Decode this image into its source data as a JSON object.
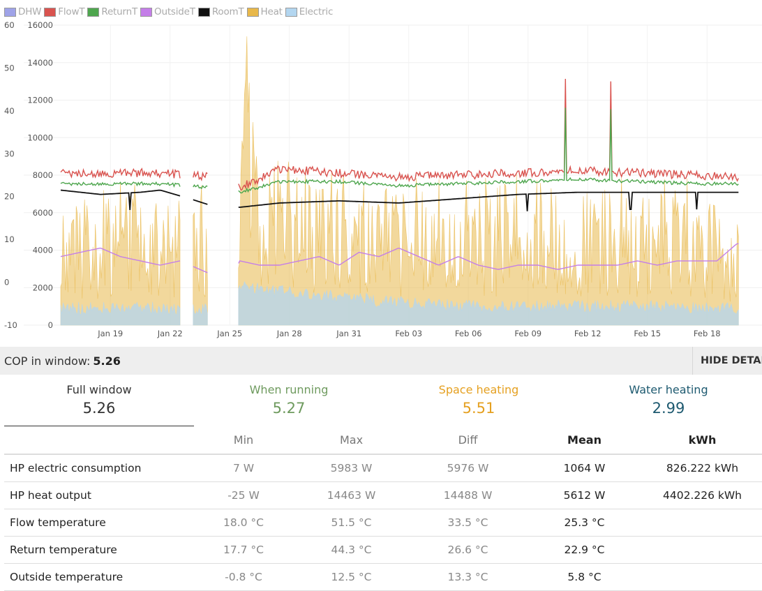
{
  "legend": [
    {
      "label": "DHW",
      "color": "#9fa3e8"
    },
    {
      "label": "FlowT",
      "color": "#d9534f"
    },
    {
      "label": "ReturnT",
      "color": "#4ea64e"
    },
    {
      "label": "OutsideT",
      "color": "#c47ee8"
    },
    {
      "label": "RoomT",
      "color": "#111111"
    },
    {
      "label": "Heat",
      "color": "#e8b84a"
    },
    {
      "label": "Electric",
      "color": "#b3d6f0"
    }
  ],
  "chart_data": {
    "type": "line",
    "title": "",
    "x_ticks": [
      "Jan 19",
      "Jan 22",
      "Jan 25",
      "Jan 28",
      "Jan 31",
      "Feb 03",
      "Feb 06",
      "Feb 09",
      "Feb 12",
      "Feb 15",
      "Feb 18"
    ],
    "y_left": {
      "ticks": [
        "60",
        "50",
        "40",
        "30",
        "20",
        "10",
        "0",
        "-10"
      ],
      "range": [
        -10,
        60
      ],
      "unit": "°C"
    },
    "y_right": {
      "ticks": [
        "16000",
        "14000",
        "12000",
        "10000",
        "8000",
        "6000",
        "4000",
        "2000",
        "0"
      ],
      "range": [
        0,
        16000
      ],
      "unit": "W"
    },
    "gaps": [
      [
        "Jan 23",
        "Jan 23.6"
      ],
      [
        "Jan 24.4",
        "Jan 25.9"
      ]
    ],
    "series": [
      {
        "name": "FlowT",
        "axis": "left",
        "style": "line",
        "color": "#d9534f",
        "x": [
          "Jan 17",
          "Jan 19",
          "Jan 22",
          "Jan 23.5",
          "Jan 24.5",
          "Jan 26",
          "Jan 28",
          "Jan 31",
          "Feb 03",
          "Feb 06",
          "Feb 09",
          "Feb 12",
          "Feb 15",
          "Feb 18",
          "Feb 20"
        ],
        "y": [
          25.5,
          25.5,
          25.5,
          25,
          24.5,
          22,
          26.5,
          25.5,
          24.5,
          25,
          25.5,
          26,
          25.5,
          25,
          24.5
        ]
      },
      {
        "name": "ReturnT",
        "axis": "left",
        "style": "line",
        "color": "#4ea64e",
        "x": [
          "Jan 17",
          "Jan 19",
          "Jan 22",
          "Jan 23.5",
          "Jan 24.5",
          "Jan 26",
          "Jan 28",
          "Jan 31",
          "Feb 03",
          "Feb 06",
          "Feb 09",
          "Feb 12",
          "Feb 15",
          "Feb 18",
          "Feb 20"
        ],
        "y": [
          23,
          23,
          23,
          22.5,
          22,
          21,
          23.5,
          23.5,
          22.5,
          23,
          23.5,
          24,
          23.5,
          23,
          23
        ]
      },
      {
        "name": "RoomT",
        "axis": "left",
        "style": "line",
        "color": "#111111",
        "x": [
          "Jan 17",
          "Jan 19",
          "Jan 21",
          "Jan 22",
          "Jan 23.5",
          "Jan 24.5",
          "Jan 26",
          "Jan 28",
          "Jan 31",
          "Feb 03",
          "Feb 06",
          "Feb 09",
          "Feb 12",
          "Feb 15",
          "Feb 18",
          "Feb 20"
        ],
        "y": [
          21.5,
          20.5,
          21,
          21.5,
          19.5,
          18,
          17.5,
          18.5,
          19,
          18.5,
          19.5,
          20.5,
          21,
          21,
          21,
          21
        ]
      },
      {
        "name": "OutsideT",
        "axis": "left",
        "style": "line",
        "color": "#c47ee8",
        "x": [
          "Jan 17",
          "Jan 18",
          "Jan 19",
          "Jan 20",
          "Jan 21",
          "Jan 22",
          "Jan 23",
          "Jan 24",
          "Jan 25",
          "Jan 25.5",
          "Jan 26",
          "Jan 27",
          "Jan 28",
          "Jan 29",
          "Jan 30",
          "Jan 31",
          "Feb 01",
          "Feb 02",
          "Feb 03",
          "Feb 04",
          "Feb 05",
          "Feb 06",
          "Feb 07",
          "Feb 08",
          "Feb 09",
          "Feb 10",
          "Feb 11",
          "Feb 12",
          "Feb 13",
          "Feb 14",
          "Feb 15",
          "Feb 16",
          "Feb 17",
          "Feb 18",
          "Feb 19",
          "Feb 20"
        ],
        "y": [
          6,
          7,
          8,
          6,
          5,
          4,
          5,
          3,
          1,
          0,
          5,
          4,
          4,
          5,
          6,
          4,
          7,
          6,
          8,
          6,
          4,
          6,
          4,
          3,
          4,
          4,
          3,
          4,
          4,
          4,
          5,
          4,
          5,
          5,
          5,
          9
        ]
      },
      {
        "name": "Heat",
        "axis": "right",
        "style": "area",
        "color": "#e8b84a",
        "x": [
          "Jan 17",
          "Jan 19",
          "Jan 22",
          "Jan 23.5",
          "Jan 24.5",
          "Jan 26",
          "Jan 26.3",
          "Jan 27",
          "Jan 28",
          "Jan 31",
          "Feb 03",
          "Feb 06",
          "Feb 09",
          "Feb 12",
          "Feb 15",
          "Feb 18",
          "Feb 20"
        ],
        "y": [
          5800,
          5500,
          5000,
          5000,
          5000,
          5500,
          14400,
          6000,
          7000,
          6000,
          5500,
          5500,
          6000,
          6000,
          5500,
          5500,
          4500
        ]
      },
      {
        "name": "Electric",
        "axis": "right",
        "style": "area",
        "color": "#b3d6f0",
        "x": [
          "Jan 17",
          "Jan 19",
          "Jan 22",
          "Jan 23.5",
          "Jan 24.5",
          "Jan 26",
          "Jan 28",
          "Jan 31",
          "Feb 03",
          "Feb 06",
          "Feb 09",
          "Feb 12",
          "Feb 15",
          "Feb 18",
          "Feb 20"
        ],
        "y": [
          900,
          900,
          900,
          800,
          800,
          2000,
          1800,
          1500,
          1200,
          1000,
          1000,
          1000,
          1000,
          900,
          900
        ]
      }
    ]
  },
  "cop_bar": {
    "label": "COP in window:",
    "value": "5.26",
    "hide_label": "HIDE DETAILS"
  },
  "cop_tabs": [
    {
      "label": "Full window",
      "value": "5.26",
      "color": "#333333",
      "value_color": "#333333"
    },
    {
      "label": "When running",
      "value": "5.27",
      "color": "#6e9a5e",
      "value_color": "#6e9a5e"
    },
    {
      "label": "Space heating",
      "value": "5.51",
      "color": "#e5a020",
      "value_color": "#e5a020"
    },
    {
      "label": "Water heating",
      "value": "2.99",
      "color": "#1e5a70",
      "value_color": "#1e5a70"
    }
  ],
  "stats": {
    "headers": [
      "",
      "Min",
      "Max",
      "Diff",
      "Mean",
      "kWh"
    ],
    "rows": [
      {
        "name": "HP electric consumption",
        "min": "7 W",
        "max": "5983 W",
        "diff": "5976 W",
        "mean": "1064 W",
        "kwh": "826.222 kWh"
      },
      {
        "name": "HP heat output",
        "min": "-25 W",
        "max": "14463 W",
        "diff": "14488 W",
        "mean": "5612 W",
        "kwh": "4402.226 kWh"
      },
      {
        "name": "Flow temperature",
        "min": "18.0 °C",
        "max": "51.5 °C",
        "diff": "33.5 °C",
        "mean": "25.3 °C",
        "kwh": ""
      },
      {
        "name": "Return temperature",
        "min": "17.7 °C",
        "max": "44.3 °C",
        "diff": "26.6 °C",
        "mean": "22.9 °C",
        "kwh": ""
      },
      {
        "name": "Outside temperature",
        "min": "-0.8 °C",
        "max": "12.5 °C",
        "diff": "13.3 °C",
        "mean": "5.8 °C",
        "kwh": ""
      }
    ]
  }
}
